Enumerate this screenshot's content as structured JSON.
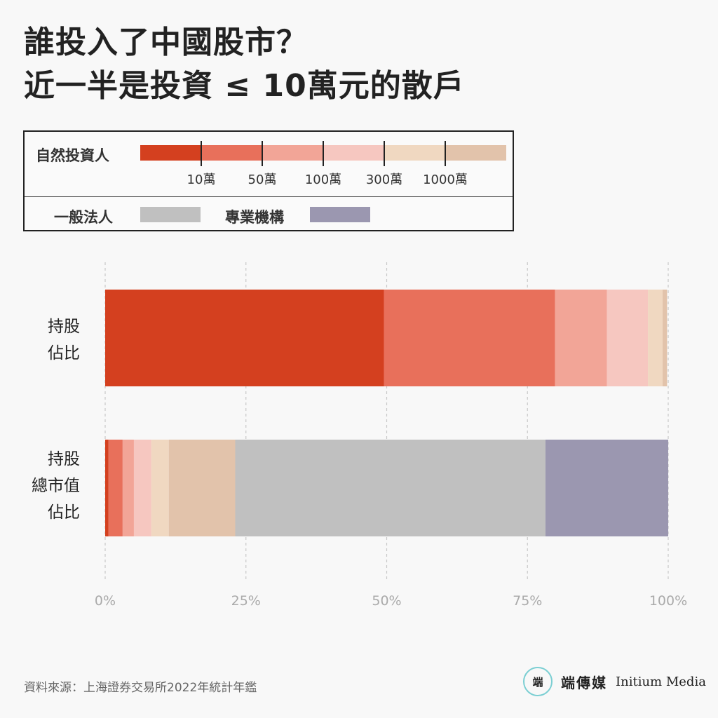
{
  "title": {
    "line1": "誰投入了中國股市？",
    "line2": "近一半是投資 ≤ 10萬元的散戶"
  },
  "legend": {
    "natural_label": "自然投資人",
    "thresholds": [
      "10萬",
      "50萬",
      "100萬",
      "300萬",
      "1000萬"
    ],
    "general_corp_label": "一般法人",
    "institution_label": "專業機構"
  },
  "colors": {
    "le10": "#d4401f",
    "10to50": "#e8705b",
    "50to100": "#f2a597",
    "100to300": "#f6c7c0",
    "300to1000": "#f0d8c1",
    "gt1000": "#e2c3ab",
    "general_corp": "#c0c0c0",
    "institution": "#9b97b0"
  },
  "chart_data": {
    "type": "bar",
    "orientation": "horizontal",
    "stacked": true,
    "categories": [
      [
        "持股",
        "佔比"
      ],
      [
        "持股",
        "總市值",
        "佔比"
      ]
    ],
    "series": [
      {
        "key": "le10",
        "values": [
          49.5,
          0.6
        ]
      },
      {
        "key": "10to50",
        "values": [
          30.4,
          2.5
        ]
      },
      {
        "key": "50to100",
        "values": [
          9.2,
          2.0
        ]
      },
      {
        "key": "100to300",
        "values": [
          7.3,
          3.1
        ]
      },
      {
        "key": "300to1000",
        "values": [
          2.6,
          3.1
        ]
      },
      {
        "key": "gt1000",
        "values": [
          0.8,
          11.8
        ]
      },
      {
        "key": "general_corp",
        "values": [
          0,
          55.1
        ]
      },
      {
        "key": "institution",
        "values": [
          0,
          21.8
        ]
      }
    ],
    "xlim": [
      0,
      100
    ],
    "x_ticks": [
      "0%",
      "25%",
      "50%",
      "75%",
      "100%"
    ],
    "grid": true,
    "legend_position": "top"
  },
  "source": "資料來源：上海證券交易所2022年統計年鑑",
  "brand": {
    "logo_text": "端",
    "cn": "端傳媒",
    "en": "Initium Media"
  }
}
